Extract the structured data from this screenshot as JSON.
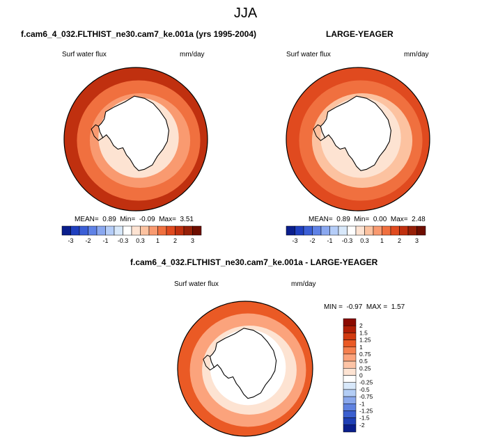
{
  "title": "JJA",
  "colors": {
    "continent": "#d8e8fa",
    "ocean_border": "#000000"
  },
  "panels": [
    {
      "title": "f.cam6_4_032.FLTHIST_ne30.cam7_ke.001a (yrs 1995-2004)",
      "variable": "Surf water flux",
      "units": "mm/day",
      "stats": {
        "mean_label": "MEAN=",
        "mean": "0.89",
        "min_label": "Min=",
        "min": "-0.09",
        "max_label": "Max=",
        "max": "3.51"
      }
    },
    {
      "title": "LARGE-YEAGER",
      "variable": "Surf water flux",
      "units": "mm/day",
      "stats": {
        "mean_label": "MEAN=",
        "mean": "0.89",
        "min_label": "Min=",
        "min": "0.00",
        "max_label": "Max=",
        "max": "2.48"
      }
    },
    {
      "title": "f.cam6_4_032.FLTHIST_ne30.cam7_ke.001a - LARGE-YEAGER",
      "variable": "Surf water flux",
      "units": "mm/day",
      "stats": {
        "min_label": "MIN =",
        "min": "-0.97",
        "max_label": "MAX =",
        "max": "1.57"
      }
    }
  ],
  "chart_data": [
    {
      "type": "heatmap",
      "projection": "south-polar-stereographic",
      "title": "f.cam6_4_032.FLTHIST_ne30.cam7_ke.001a (yrs 1995-2004)",
      "variable": "Surf water flux",
      "units": "mm/day",
      "mean": 0.89,
      "min": -0.09,
      "max": 3.51,
      "colorbar": {
        "orientation": "horizontal",
        "tick_labels": [
          "-3",
          "-2",
          "-1",
          "-0.3",
          "0.3",
          "1",
          "2",
          "3"
        ],
        "colors": [
          "#0a1e8c",
          "#1f3fbf",
          "#3b5fd6",
          "#5f82e6",
          "#8aa8f0",
          "#b5cdf8",
          "#d8e8fa",
          "#ffffff",
          "#fde3d2",
          "#fcc2a0",
          "#f99a70",
          "#f0703f",
          "#e04a1f",
          "#c0300f",
          "#962008",
          "#6e0e00"
        ]
      },
      "field": [
        {
          "ring": "outer",
          "value": 2.5
        },
        {
          "ring": "mid",
          "value": 1.5
        },
        {
          "ring": "inner",
          "value": 0.7
        },
        {
          "ring": "coast",
          "value": 0.3
        },
        {
          "ring": "land",
          "value": 0.0
        }
      ]
    },
    {
      "type": "heatmap",
      "projection": "south-polar-stereographic",
      "title": "LARGE-YEAGER",
      "variable": "Surf water flux",
      "units": "mm/day",
      "mean": 0.89,
      "min": 0.0,
      "max": 2.48,
      "colorbar": {
        "orientation": "horizontal",
        "tick_labels": [
          "-3",
          "-2",
          "-1",
          "-0.3",
          "0.3",
          "1",
          "2",
          "3"
        ],
        "colors": [
          "#0a1e8c",
          "#1f3fbf",
          "#3b5fd6",
          "#5f82e6",
          "#8aa8f0",
          "#b5cdf8",
          "#d8e8fa",
          "#ffffff",
          "#fde3d2",
          "#fcc2a0",
          "#f99a70",
          "#f0703f",
          "#e04a1f",
          "#c0300f",
          "#962008",
          "#6e0e00"
        ]
      },
      "field": [
        {
          "ring": "outer",
          "value": 2.0
        },
        {
          "ring": "mid",
          "value": 1.2
        },
        {
          "ring": "inner",
          "value": 0.5
        },
        {
          "ring": "coast",
          "value": 0.2
        },
        {
          "ring": "land",
          "value": null
        }
      ]
    },
    {
      "type": "heatmap",
      "projection": "south-polar-stereographic",
      "title": "f.cam6_4_032.FLTHIST_ne30.cam7_ke.001a - LARGE-YEAGER",
      "variable": "Surf water flux",
      "units": "mm/day",
      "min": -0.97,
      "max": 1.57,
      "colorbar": {
        "orientation": "vertical",
        "tick_labels": [
          "2",
          "1.5",
          "1.25",
          "1",
          "0.75",
          "0.5",
          "0.25",
          "0",
          "-0.25",
          "-0.5",
          "-0.75",
          "-1",
          "-1.25",
          "-1.5",
          "-2"
        ],
        "colors": [
          "#8b0a00",
          "#b01e05",
          "#d13a10",
          "#ea5a25",
          "#f5804f",
          "#fba37c",
          "#fdc4a6",
          "#fde3d2",
          "#ffffff",
          "#d8e8fa",
          "#b3cdf5",
          "#8aa8ec",
          "#5f82e0",
          "#3b5fcf",
          "#1f3fb5",
          "#0a1e8c"
        ]
      },
      "field": [
        {
          "ring": "outer",
          "value": 1.0
        },
        {
          "ring": "mid",
          "value": 0.5
        },
        {
          "ring": "inner",
          "value": 0.2
        },
        {
          "ring": "coast",
          "value": -0.1
        },
        {
          "ring": "land",
          "value": null
        }
      ]
    }
  ]
}
